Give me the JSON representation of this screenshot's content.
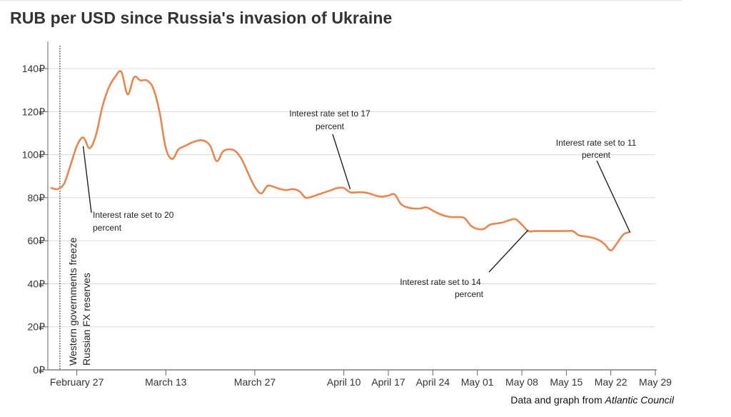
{
  "title": "RUB per USD since Russia's invasion of Ukraine",
  "source": {
    "prefix": "Data and graph from",
    "org": "Atlantic Council"
  },
  "colors": {
    "line": "#e8864f",
    "grid": "#d9d9d9",
    "axis": "#666666",
    "text": "#333333"
  },
  "chart_data": {
    "type": "line",
    "title": "RUB per USD since Russia's invasion of Ukraine",
    "xlabel": "",
    "ylabel": "",
    "ylim": [
      0,
      150
    ],
    "y_ticks": [
      0,
      20,
      40,
      60,
      80,
      100,
      120,
      140
    ],
    "y_tick_suffix": "₽",
    "grid": "horizontal",
    "x_ticks": [
      {
        "date": "2022-02-27",
        "label": "February 27"
      },
      {
        "date": "2022-03-13",
        "label": "March 13"
      },
      {
        "date": "2022-03-27",
        "label": "March 27"
      },
      {
        "date": "2022-04-10",
        "label": "April 10"
      },
      {
        "date": "2022-04-17",
        "label": "April 17"
      },
      {
        "date": "2022-04-24",
        "label": "April 24"
      },
      {
        "date": "2022-05-01",
        "label": "May 01"
      },
      {
        "date": "2022-05-08",
        "label": "May 08"
      },
      {
        "date": "2022-05-15",
        "label": "May 15"
      },
      {
        "date": "2022-05-22",
        "label": "May 22"
      },
      {
        "date": "2022-05-29",
        "label": "May 29"
      }
    ],
    "series": [
      {
        "points": [
          [
            "2022-02-23",
            84.5
          ],
          [
            "2022-02-24",
            84
          ],
          [
            "2022-02-25",
            86.5
          ],
          [
            "2022-02-26",
            95
          ],
          [
            "2022-02-27",
            104
          ],
          [
            "2022-02-28",
            108
          ],
          [
            "2022-03-01",
            103
          ],
          [
            "2022-03-02",
            109
          ],
          [
            "2022-03-03",
            122
          ],
          [
            "2022-03-04",
            131
          ],
          [
            "2022-03-05",
            136
          ],
          [
            "2022-03-06",
            138.5
          ],
          [
            "2022-03-07",
            128
          ],
          [
            "2022-03-08",
            136
          ],
          [
            "2022-03-09",
            134.5
          ],
          [
            "2022-03-10",
            134.5
          ],
          [
            "2022-03-11",
            131
          ],
          [
            "2022-03-12",
            120
          ],
          [
            "2022-03-13",
            103
          ],
          [
            "2022-03-14",
            98
          ],
          [
            "2022-03-15",
            102.5
          ],
          [
            "2022-03-16",
            104
          ],
          [
            "2022-03-17",
            105.5
          ],
          [
            "2022-03-18",
            106.5
          ],
          [
            "2022-03-19",
            106.5
          ],
          [
            "2022-03-20",
            104
          ],
          [
            "2022-03-21",
            97
          ],
          [
            "2022-03-22",
            101.5
          ],
          [
            "2022-03-23",
            102.5
          ],
          [
            "2022-03-24",
            101.5
          ],
          [
            "2022-03-25",
            97.5
          ],
          [
            "2022-03-26",
            91
          ],
          [
            "2022-03-27",
            85
          ],
          [
            "2022-03-28",
            82
          ],
          [
            "2022-03-29",
            85.5
          ],
          [
            "2022-03-30",
            85
          ],
          [
            "2022-03-31",
            84
          ],
          [
            "2022-04-01",
            83.5
          ],
          [
            "2022-04-02",
            84
          ],
          [
            "2022-04-03",
            83
          ],
          [
            "2022-04-04",
            80
          ],
          [
            "2022-04-05",
            80.5
          ],
          [
            "2022-04-06",
            81.5
          ],
          [
            "2022-04-07",
            82.5
          ],
          [
            "2022-04-08",
            83.5
          ],
          [
            "2022-04-09",
            84.5
          ],
          [
            "2022-04-10",
            84.5
          ],
          [
            "2022-04-11",
            82.5
          ],
          [
            "2022-04-12",
            82.5
          ],
          [
            "2022-04-13",
            82.5
          ],
          [
            "2022-04-14",
            82
          ],
          [
            "2022-04-15",
            81
          ],
          [
            "2022-04-16",
            80.5
          ],
          [
            "2022-04-17",
            81
          ],
          [
            "2022-04-18",
            81.5
          ],
          [
            "2022-04-19",
            77
          ],
          [
            "2022-04-20",
            75.5
          ],
          [
            "2022-04-21",
            75
          ],
          [
            "2022-04-22",
            75
          ],
          [
            "2022-04-23",
            75.5
          ],
          [
            "2022-04-24",
            74
          ],
          [
            "2022-04-25",
            72.5
          ],
          [
            "2022-04-26",
            71.5
          ],
          [
            "2022-04-27",
            71
          ],
          [
            "2022-04-28",
            71
          ],
          [
            "2022-04-29",
            70.5
          ],
          [
            "2022-04-30",
            67
          ],
          [
            "2022-05-01",
            65.5
          ],
          [
            "2022-05-02",
            65.5
          ],
          [
            "2022-05-03",
            67.5
          ],
          [
            "2022-05-04",
            68
          ],
          [
            "2022-05-05",
            68.5
          ],
          [
            "2022-05-06",
            69.5
          ],
          [
            "2022-05-07",
            70
          ],
          [
            "2022-05-08",
            67.5
          ],
          [
            "2022-05-09",
            64.5
          ],
          [
            "2022-05-10",
            64.5
          ],
          [
            "2022-05-11",
            64.5
          ],
          [
            "2022-05-12",
            64.5
          ],
          [
            "2022-05-13",
            64.5
          ],
          [
            "2022-05-14",
            64.5
          ],
          [
            "2022-05-15",
            64.5
          ],
          [
            "2022-05-16",
            64.5
          ],
          [
            "2022-05-17",
            62.5
          ],
          [
            "2022-05-18",
            62
          ],
          [
            "2022-05-19",
            61.5
          ],
          [
            "2022-05-20",
            60.5
          ],
          [
            "2022-05-21",
            58.5
          ],
          [
            "2022-05-22",
            55.5
          ],
          [
            "2022-05-23",
            59
          ],
          [
            "2022-05-24",
            63
          ],
          [
            "2022-05-25",
            64
          ]
        ]
      }
    ],
    "reference_line": {
      "date": "2022-02-24",
      "label_lines": [
        "Western governments freeze",
        "Russian FX reserves"
      ]
    },
    "annotations": [
      {
        "lines": [
          "Interest rate set to 20",
          "percent"
        ],
        "date": "2022-02-28",
        "value": 104
      },
      {
        "lines": [
          "Interest rate set to 17",
          "percent"
        ],
        "date": "2022-04-11",
        "value": 84
      },
      {
        "lines": [
          "Interest rate set to 14",
          "percent"
        ],
        "date": "2022-05-09",
        "value": 65
      },
      {
        "lines": [
          "Interest rate set to 11",
          "percent"
        ],
        "date": "2022-05-25",
        "value": 64
      }
    ]
  }
}
